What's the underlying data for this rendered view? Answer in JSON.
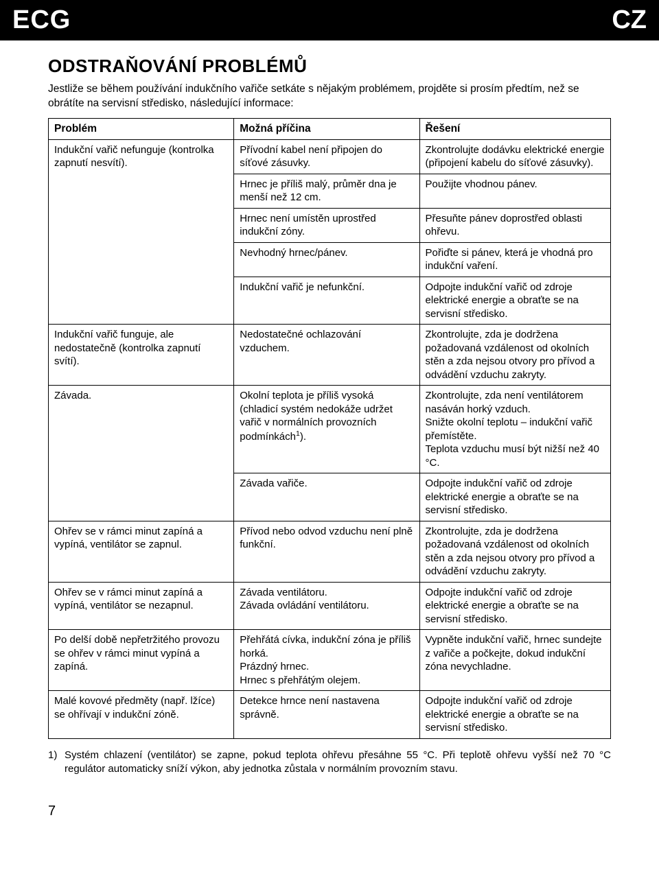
{
  "header": {
    "brand_left": "ECG",
    "brand_right": "CZ"
  },
  "section": {
    "title": "ODSTRAŇOVÁNÍ PROBLÉMŮ",
    "intro": "Jestliže se během používání indukčního vařiče setkáte s nějakým problémem, projděte si prosím předtím, než se obrátíte na servisní středisko, následující informace:"
  },
  "table": {
    "headers": {
      "problem": "Problém",
      "cause": "Možná příčina",
      "solution": "Řešení"
    },
    "groups": [
      {
        "problem": "Indukční vařič nefunguje (kontrolka zapnutí nesvítí).",
        "rows": [
          {
            "cause": "Přívodní kabel není připojen do síťové zásuvky.",
            "solution": "Zkontrolujte dodávku elektrické energie (připojení kabelu do síťové zásuvky)."
          },
          {
            "cause": "Hrnec je příliš malý, průměr dna je menší než 12 cm.",
            "solution": "Použijte vhodnou pánev."
          },
          {
            "cause": "Hrnec není umístěn uprostřed indukční zóny.",
            "solution": "Přesuňte pánev doprostřed oblasti ohřevu."
          },
          {
            "cause": "Nevhodný hrnec/pánev.",
            "solution": "Pořiďte si pánev, která je vhodná pro indukční vaření."
          },
          {
            "cause": "Indukční vařič je nefunkční.",
            "solution": "Odpojte indukční vařič od zdroje elektrické energie a obraťte se na servisní středisko."
          }
        ]
      },
      {
        "problem": "Indukční vařič funguje, ale nedostatečně (kontrolka zapnutí svítí).",
        "rows": [
          {
            "cause": "Nedostatečné ochlazování vzduchem.",
            "solution": "Zkontrolujte, zda je dodržena požadovaná vzdálenost od okolních stěn a zda nejsou otvory pro přívod a odvádění vzduchu zakryty."
          }
        ]
      },
      {
        "problem": "Závada.",
        "rows": [
          {
            "cause_html": "Okolní teplota je příliš vysoká (chladicí systém nedokáže udržet vařič v normálních provozních podmínkách<sup>1</sup>).",
            "solution": "Zkontrolujte, zda není ventilátorem nasáván horký vzduch.\nSnižte okolní teplotu – indukční vařič přemístěte.\nTeplota vzduchu musí být nižší než 40 °C."
          },
          {
            "cause": "Závada vařiče.",
            "solution": "Odpojte indukční vařič od zdroje elektrické energie a obraťte se na servisní středisko."
          }
        ]
      },
      {
        "problem": "Ohřev se v rámci minut zapíná a vypíná, ventilátor se zapnul.",
        "rows": [
          {
            "cause": "Přívod nebo odvod vzduchu není plně funkční.",
            "solution": "Zkontrolujte, zda je dodržena požadovaná vzdálenost od okolních stěn a zda nejsou otvory pro přívod a odvádění vzduchu zakryty."
          }
        ]
      },
      {
        "problem": "Ohřev se v rámci minut zapíná a vypíná, ventilátor se nezapnul.",
        "rows": [
          {
            "cause": "Závada ventilátoru.\nZávada ovládání ventilátoru.",
            "solution": "Odpojte indukční vařič od zdroje elektrické energie a obraťte se na servisní středisko."
          }
        ]
      },
      {
        "problem": "Po delší době nepřetržitého provozu se ohřev v rámci minut vypíná a zapíná.",
        "rows": [
          {
            "cause": "Přehřátá cívka, indukční zóna je příliš horká.\nPrázdný hrnec.\nHrnec s přehřátým olejem.",
            "solution": "Vypněte indukční vařič, hrnec sundejte z vařiče a počkejte, dokud indukční zóna nevychladne."
          }
        ]
      },
      {
        "problem": "Malé kovové předměty (např. lžíce) se ohřívají v indukční zóně.",
        "rows": [
          {
            "cause": "Detekce hrnce není nastavena správně.",
            "solution": "Odpojte indukční vařič od zdroje elektrické energie a obraťte se na servisní středisko."
          }
        ]
      }
    ]
  },
  "footnote": {
    "marker": "1)",
    "text": "Systém chlazení (ventilátor) se zapne, pokud teplota ohřevu přesáhne 55 °C. Při teplotě ohřevu vyšší než 70 °C regulátor automaticky sníží výkon, aby jednotka zůstala v normálním provozním stavu."
  },
  "page_number": "7",
  "colors": {
    "header_bg": "#000000",
    "header_text": "#ffffff",
    "body_bg": "#ffffff",
    "border": "#000000",
    "text": "#000000"
  },
  "typography": {
    "body_font": "Arial, Helvetica, sans-serif",
    "title_fontsize": 26,
    "body_fontsize": 15,
    "brand_fontsize": 38
  }
}
